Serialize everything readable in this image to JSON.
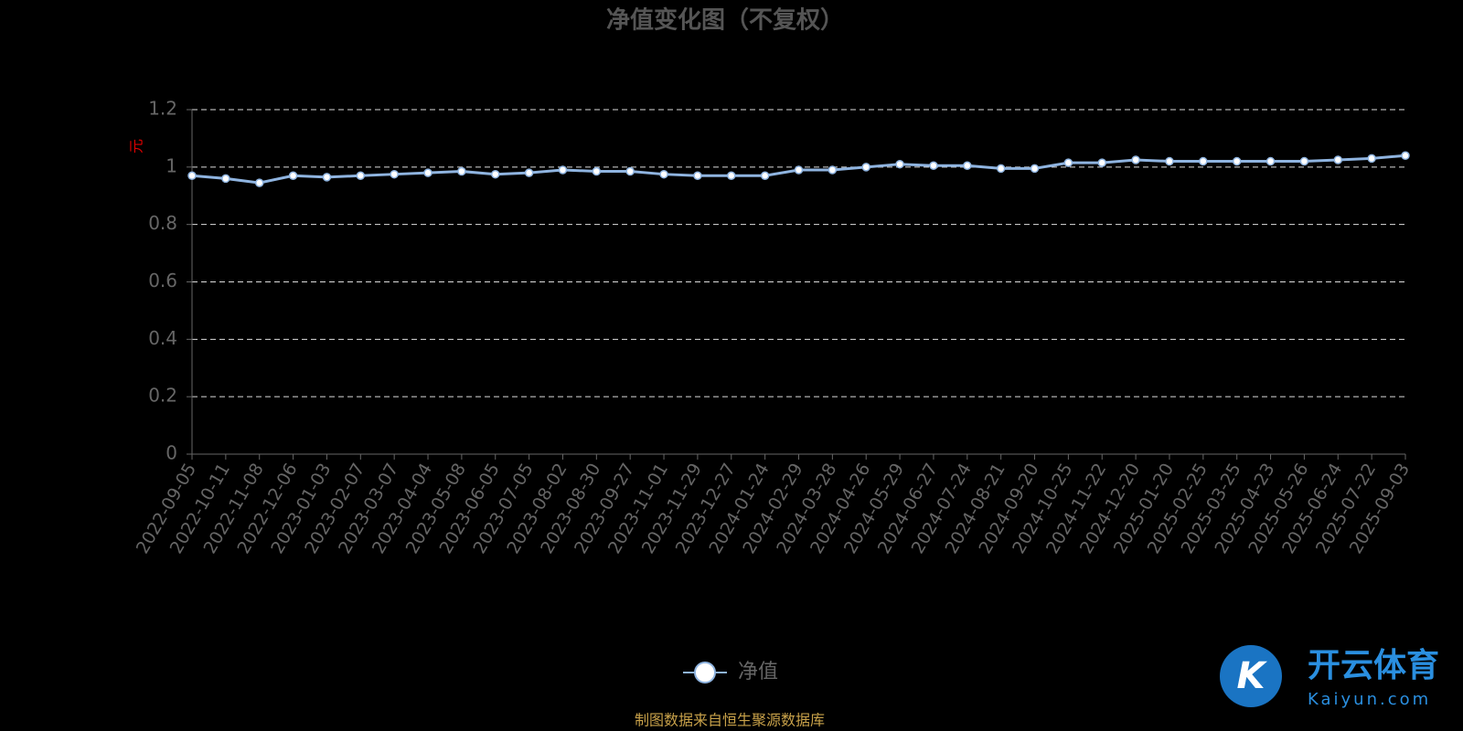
{
  "chart_data": {
    "type": "line",
    "title": "净值变化图（不复权）",
    "y_label": "元",
    "categories": [
      "2022-09-05",
      "2022-10-11",
      "2022-11-08",
      "2022-12-06",
      "2023-01-03",
      "2023-02-07",
      "2023-03-07",
      "2023-04-04",
      "2023-05-08",
      "2023-06-05",
      "2023-07-05",
      "2023-08-02",
      "2023-08-30",
      "2023-09-27",
      "2023-11-01",
      "2023-11-29",
      "2023-12-27",
      "2024-01-24",
      "2024-02-29",
      "2024-03-28",
      "2024-04-26",
      "2024-05-29",
      "2024-06-27",
      "2024-07-24",
      "2024-08-21",
      "2024-09-20",
      "2024-10-25",
      "2024-11-22",
      "2024-12-20",
      "2025-01-20",
      "2025-02-25",
      "2025-03-25",
      "2025-04-23",
      "2025-05-26",
      "2025-06-24",
      "2025-07-22",
      "2025-09-03"
    ],
    "series": [
      {
        "name": "净值",
        "color": "#8fb4e0",
        "values": [
          0.97,
          0.96,
          0.945,
          0.97,
          0.965,
          0.97,
          0.975,
          0.98,
          0.985,
          0.975,
          0.98,
          0.99,
          0.985,
          0.985,
          0.975,
          0.97,
          0.97,
          0.97,
          0.99,
          0.99,
          1.0,
          1.01,
          1.005,
          1.005,
          0.995,
          0.995,
          1.015,
          1.015,
          1.025,
          1.02,
          1.02,
          1.02,
          1.02,
          1.02,
          1.025,
          1.03,
          1.04
        ]
      }
    ],
    "ylim": [
      0,
      1.2
    ],
    "yticks": [
      0,
      0.2,
      0.4,
      0.6,
      0.8,
      1,
      1.2
    ],
    "grid": true,
    "source": "制图数据来自恒生聚源数据库"
  },
  "watermark": {
    "brand": "开云体育",
    "url": "Kaiyun.com"
  }
}
